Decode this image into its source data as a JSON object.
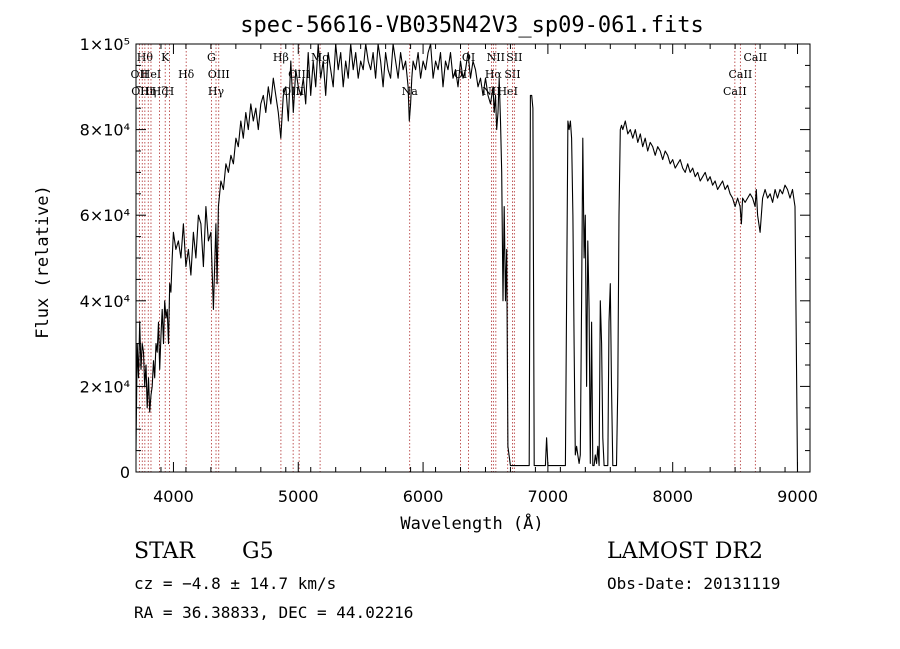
{
  "chart_data": {
    "type": "line",
    "title": "spec-56616-VB035N42V3_sp09-061.fits",
    "xlabel": "Wavelength (Å)",
    "ylabel": "Flux (relative)",
    "xlim": [
      3700,
      9100
    ],
    "ylim": [
      0,
      100000
    ],
    "x_ticks": [
      {
        "value": 4000,
        "label": "4000"
      },
      {
        "value": 5000,
        "label": "5000"
      },
      {
        "value": 6000,
        "label": "6000"
      },
      {
        "value": 7000,
        "label": "7000"
      },
      {
        "value": 8000,
        "label": "8000"
      },
      {
        "value": 9000,
        "label": "9000"
      }
    ],
    "y_ticks": [
      {
        "value": 0,
        "label": "0"
      },
      {
        "value": 20000,
        "label": "2×10⁴"
      },
      {
        "value": 40000,
        "label": "4×10⁴"
      },
      {
        "value": 60000,
        "label": "6×10⁴"
      },
      {
        "value": 80000,
        "label": "8×10⁴"
      },
      {
        "value": 100000,
        "label": "1×10⁵"
      }
    ],
    "grid": false,
    "line_color": "#000000",
    "marker_line_color": "#b03030",
    "line_markers": [
      {
        "wavelength": 3727,
        "label": "OII",
        "row": 1
      },
      {
        "wavelength": 3750,
        "label": "OIII",
        "row": 2
      },
      {
        "wavelength": 3771,
        "label": "Hθ",
        "row": 0
      },
      {
        "wavelength": 3798,
        "label": "Hη",
        "row": 2
      },
      {
        "wavelength": 3820,
        "label": "HeI",
        "row": 1
      },
      {
        "wavelength": 3889,
        "label": "Hζ",
        "row": 2
      },
      {
        "wavelength": 3934,
        "label": "K",
        "row": 0
      },
      {
        "wavelength": 3968,
        "label": "H",
        "row": 2
      },
      {
        "wavelength": 4102,
        "label": "Hδ",
        "row": 1
      },
      {
        "wavelength": 4304,
        "label": "G",
        "row": 0
      },
      {
        "wavelength": 4341,
        "label": "Hγ",
        "row": 2
      },
      {
        "wavelength": 4363,
        "label": "OIII",
        "row": 1
      },
      {
        "wavelength": 4861,
        "label": "Hβ",
        "row": 0
      },
      {
        "wavelength": 4959,
        "label": "OIII",
        "row": 2
      },
      {
        "wavelength": 5007,
        "label": "OIII",
        "row": 1
      },
      {
        "wavelength": 5175,
        "label": "Mg",
        "row": 0
      },
      {
        "wavelength": 5893,
        "label": "Na",
        "row": 2
      },
      {
        "wavelength": 6300,
        "label": "OI",
        "row": 1
      },
      {
        "wavelength": 6364,
        "label": "OI",
        "row": 0
      },
      {
        "wavelength": 6548,
        "label": "NII",
        "row": 2
      },
      {
        "wavelength": 6563,
        "label": "Hα",
        "row": 1
      },
      {
        "wavelength": 6583,
        "label": "NII",
        "row": 0
      },
      {
        "wavelength": 6678,
        "label": "HeI",
        "row": 2
      },
      {
        "wavelength": 6716,
        "label": "SII",
        "row": 1
      },
      {
        "wavelength": 6731,
        "label": "SII",
        "row": 0
      },
      {
        "wavelength": 8498,
        "label": "CaII",
        "row": 2
      },
      {
        "wavelength": 8542,
        "label": "CaII",
        "row": 1
      },
      {
        "wavelength": 8662,
        "label": "CaII",
        "row": 0
      }
    ],
    "series": [
      {
        "x": [
          3700,
          3710,
          3720,
          3730,
          3740,
          3750,
          3760,
          3770,
          3780,
          3790,
          3800,
          3810,
          3820,
          3830,
          3840,
          3850,
          3860,
          3870,
          3880,
          3890,
          3900,
          3910,
          3920,
          3930,
          3940,
          3950,
          3960,
          3970,
          3980,
          3990,
          4000,
          4020,
          4040,
          4060,
          4080,
          4100,
          4120,
          4140,
          4160,
          4180,
          4200,
          4220,
          4240,
          4260,
          4280,
          4300,
          4320,
          4340,
          4350,
          4360,
          4380,
          4400,
          4420,
          4440,
          4460,
          4480,
          4500,
          4520,
          4540,
          4560,
          4580,
          4600,
          4620,
          4640,
          4660,
          4680,
          4700,
          4720,
          4740,
          4760,
          4780,
          4800,
          4820,
          4840,
          4860,
          4880,
          4900,
          4920,
          4940,
          4960,
          4980,
          5000,
          5020,
          5040,
          5060,
          5080,
          5100,
          5120,
          5140,
          5160,
          5180,
          5200,
          5220,
          5240,
          5260,
          5280,
          5300,
          5320,
          5340,
          5360,
          5380,
          5400,
          5420,
          5440,
          5460,
          5480,
          5500,
          5520,
          5540,
          5560,
          5580,
          5600,
          5620,
          5640,
          5660,
          5680,
          5700,
          5720,
          5740,
          5760,
          5780,
          5800,
          5820,
          5840,
          5860,
          5880,
          5890,
          5900,
          5910,
          5920,
          5940,
          5960,
          5980,
          6000,
          6020,
          6040,
          6060,
          6080,
          6100,
          6120,
          6140,
          6160,
          6180,
          6200,
          6220,
          6240,
          6260,
          6280,
          6300,
          6320,
          6340,
          6360,
          6380,
          6400,
          6420,
          6440,
          6460,
          6480,
          6500,
          6520,
          6540,
          6560,
          6570,
          6580,
          6590,
          6600,
          6610,
          6620,
          6630,
          6640,
          6650,
          6660,
          6670,
          6680,
          6700,
          6720,
          6740,
          6760,
          6780,
          6800,
          6820,
          6840,
          6850,
          6860,
          6870,
          6880,
          6890,
          6900,
          6910,
          6920,
          6930,
          6940,
          6950,
          6960,
          6970,
          6980,
          6990,
          7000,
          7020,
          7040,
          7060,
          7080,
          7100,
          7120,
          7140,
          7160,
          7170,
          7180,
          7190,
          7200,
          7210,
          7220,
          7230,
          7240,
          7250,
          7260,
          7270,
          7280,
          7290,
          7300,
          7310,
          7320,
          7330,
          7340,
          7350,
          7360,
          7370,
          7380,
          7390,
          7400,
          7410,
          7420,
          7430,
          7440,
          7450,
          7460,
          7470,
          7480,
          7490,
          7500,
          7510,
          7520,
          7530,
          7540,
          7550,
          7560,
          7570,
          7580,
          7590,
          7600,
          7620,
          7640,
          7660,
          7680,
          7700,
          7720,
          7740,
          7760,
          7780,
          7800,
          7820,
          7840,
          7860,
          7880,
          7900,
          7920,
          7940,
          7960,
          7980,
          8000,
          8020,
          8040,
          8060,
          8080,
          8100,
          8120,
          8140,
          8160,
          8180,
          8200,
          8220,
          8240,
          8260,
          8280,
          8300,
          8320,
          8340,
          8360,
          8380,
          8400,
          8420,
          8440,
          8460,
          8480,
          8500,
          8520,
          8540,
          8550,
          8560,
          8580,
          8600,
          8620,
          8640,
          8660,
          8670,
          8680,
          8700,
          8720,
          8740,
          8760,
          8780,
          8800,
          8820,
          8840,
          8860,
          8880,
          8900,
          8920,
          8940,
          8960,
          8980,
          8990,
          9000
        ],
        "y": [
          5000,
          30000,
          22000,
          35000,
          24000,
          30000,
          28000,
          20000,
          25000,
          15000,
          22000,
          14000,
          18000,
          20000,
          26000,
          22000,
          30000,
          28000,
          35000,
          24000,
          32000,
          38000,
          30000,
          40000,
          36000,
          38000,
          30000,
          44000,
          42000,
          50000,
          56000,
          52000,
          54000,
          50000,
          58000,
          48000,
          52000,
          46000,
          56000,
          50000,
          60000,
          58000,
          48000,
          62000,
          54000,
          56000,
          38000,
          58000,
          44000,
          62000,
          68000,
          66000,
          72000,
          70000,
          74000,
          72000,
          78000,
          76000,
          82000,
          78000,
          84000,
          80000,
          86000,
          82000,
          85000,
          80000,
          86000,
          88000,
          84000,
          90000,
          86000,
          92000,
          88000,
          84000,
          78000,
          88000,
          90000,
          82000,
          96000,
          84000,
          94000,
          90000,
          88000,
          92000,
          86000,
          98000,
          88000,
          96000,
          90000,
          100000,
          92000,
          96000,
          88000,
          98000,
          94000,
          90000,
          100000,
          94000,
          98000,
          90000,
          96000,
          92000,
          100000,
          94000,
          98000,
          92000,
          96000,
          94000,
          100000,
          96000,
          94000,
          98000,
          92000,
          100000,
          96000,
          90000,
          98000,
          94000,
          92000,
          100000,
          96000,
          92000,
          98000,
          94000,
          96000,
          90000,
          82000,
          86000,
          92000,
          96000,
          94000,
          98000,
          92000,
          96000,
          94000,
          98000,
          100000,
          92000,
          96000,
          94000,
          98000,
          90000,
          96000,
          94000,
          98000,
          92000,
          94000,
          90000,
          96000,
          92000,
          94000,
          98000,
          92000,
          96000,
          94000,
          90000,
          92000,
          88000,
          92000,
          88000,
          86000,
          90000,
          84000,
          88000,
          80000,
          84000,
          92000,
          82000,
          70000,
          40000,
          62000,
          40000,
          52000,
          6000,
          1500,
          1500,
          1500,
          1500,
          1500,
          1500,
          1500,
          1500,
          1500,
          88000,
          88000,
          85000,
          1500,
          1500,
          1500,
          1500,
          1500,
          1500,
          1500,
          1500,
          1500,
          1500,
          8000,
          1500,
          1500,
          1500,
          1500,
          1500,
          1500,
          1500,
          1500,
          82000,
          80000,
          82000,
          78000,
          60000,
          30000,
          4000,
          6000,
          4000,
          2000,
          4000,
          40000,
          78000,
          50000,
          60000,
          20000,
          54000,
          38000,
          2000,
          35000,
          1500,
          1500,
          4000,
          2000,
          6000,
          1500,
          40000,
          30000,
          8000,
          1500,
          1500,
          1500,
          1500,
          35000,
          44000,
          20000,
          1500,
          1500,
          1500,
          1500,
          20000,
          60000,
          80000,
          81000,
          80000,
          82000,
          79000,
          80000,
          78000,
          80000,
          77000,
          79000,
          76000,
          78000,
          75000,
          77000,
          76000,
          74000,
          76000,
          75000,
          73000,
          75000,
          74000,
          72000,
          73000,
          71000,
          72000,
          73000,
          71000,
          70000,
          72000,
          70000,
          71000,
          69000,
          70000,
          68000,
          69000,
          70000,
          68000,
          69000,
          67000,
          68000,
          66000,
          67000,
          68000,
          66000,
          67000,
          65000,
          64000,
          62000,
          64000,
          62000,
          58000,
          64000,
          63000,
          64000,
          65000,
          64000,
          62000,
          66000,
          60000,
          56000,
          64000,
          66000,
          64000,
          65000,
          63000,
          66000,
          64000,
          66000,
          65000,
          67000,
          66000,
          64000,
          66000,
          62000,
          30000,
          0
        ]
      }
    ]
  },
  "info": {
    "object_class": "STAR",
    "subclass": "G5",
    "cz_text": "cz = −4.8 ± 14.7 km/s",
    "coords_text": "RA =  36.38833, DEC =  44.02216",
    "survey": "LAMOST DR2",
    "obs_date": "Obs-Date: 20131119"
  }
}
